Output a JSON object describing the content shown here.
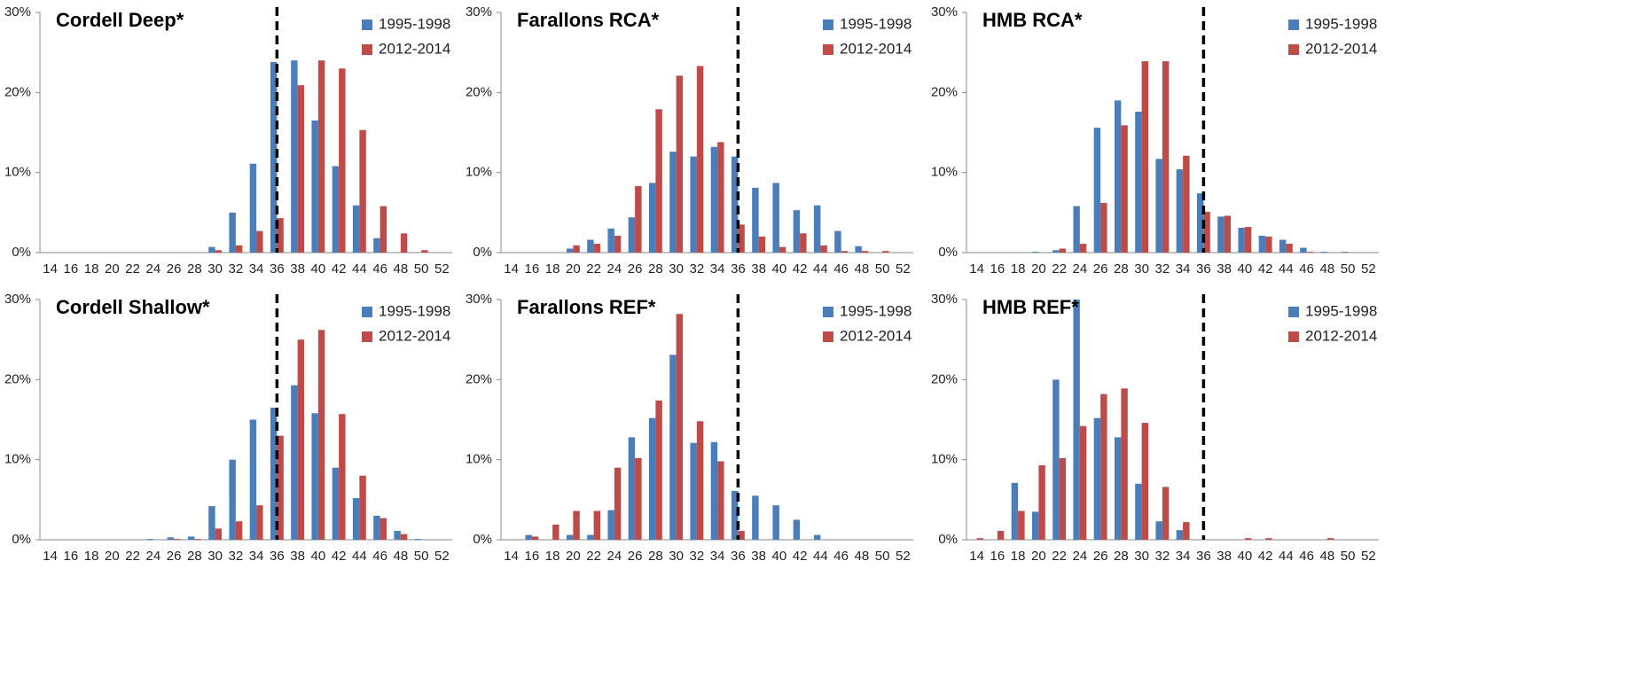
{
  "chart_data": [
    {
      "type": "bar",
      "title": "Cordell Deep*",
      "categories": [
        14,
        16,
        18,
        20,
        22,
        24,
        26,
        28,
        30,
        32,
        34,
        36,
        38,
        40,
        42,
        44,
        46,
        48,
        50,
        52
      ],
      "series": [
        {
          "name": "1995-1998",
          "color": "#4a7ebb",
          "values": [
            0,
            0,
            0,
            0,
            0,
            0,
            0,
            0,
            0.7,
            5,
            11.1,
            23.8,
            24,
            16.5,
            10.8,
            5.9,
            1.8,
            0,
            0,
            0
          ]
        },
        {
          "name": "2012-2014",
          "color": "#be4b48",
          "values": [
            0,
            0,
            0,
            0,
            0,
            0,
            0,
            0,
            0.3,
            0.9,
            2.7,
            4.3,
            20.9,
            24,
            23,
            15.3,
            5.8,
            2.4,
            0.3,
            0
          ]
        }
      ],
      "ylim": [
        0,
        30
      ],
      "yticks": [
        {
          "value": 0,
          "label": "0%"
        },
        {
          "value": 10,
          "label": "10%"
        },
        {
          "value": 20,
          "label": "20%"
        },
        {
          "value": 30,
          "label": "30%"
        }
      ],
      "threshold": 36,
      "grid": false
    },
    {
      "type": "bar",
      "title": "Farallons RCA*",
      "categories": [
        14,
        16,
        18,
        20,
        22,
        24,
        26,
        28,
        30,
        32,
        34,
        36,
        38,
        40,
        42,
        44,
        46,
        48,
        50,
        52
      ],
      "series": [
        {
          "name": "1995-1998",
          "color": "#4a7ebb",
          "values": [
            0,
            0,
            0,
            0.5,
            1.6,
            3,
            4.4,
            8.7,
            12.6,
            12,
            13.2,
            12,
            8.1,
            8.7,
            5.3,
            5.9,
            2.7,
            0.8,
            0,
            0
          ]
        },
        {
          "name": "2012-2014",
          "color": "#be4b48",
          "values": [
            0,
            0,
            0,
            0.9,
            1.1,
            2.1,
            8.3,
            17.9,
            22.1,
            23.3,
            13.8,
            3.5,
            2,
            0.7,
            2.4,
            0.9,
            0.2,
            0.2,
            0.2,
            0
          ]
        }
      ],
      "ylim": [
        0,
        30
      ],
      "yticks": [
        {
          "value": 0,
          "label": "0%"
        },
        {
          "value": 10,
          "label": "10%"
        },
        {
          "value": 20,
          "label": "20%"
        },
        {
          "value": 30,
          "label": "30%"
        }
      ],
      "threshold": 36,
      "grid": false
    },
    {
      "type": "bar",
      "title": "HMB RCA*",
      "categories": [
        14,
        16,
        18,
        20,
        22,
        24,
        26,
        28,
        30,
        32,
        34,
        36,
        38,
        40,
        42,
        44,
        46,
        48,
        50,
        52
      ],
      "series": [
        {
          "name": "1995-1998",
          "color": "#4a7ebb",
          "values": [
            0,
            0,
            0,
            0.1,
            0.3,
            5.8,
            15.6,
            19,
            17.6,
            11.7,
            10.4,
            7.4,
            4.5,
            3.1,
            2.1,
            1.6,
            0.6,
            0.1,
            0.1,
            0
          ]
        },
        {
          "name": "2012-2014",
          "color": "#be4b48",
          "values": [
            0,
            0,
            0,
            0,
            0.5,
            1.1,
            6.2,
            15.9,
            23.9,
            23.9,
            12.1,
            5.1,
            4.6,
            3.2,
            2,
            1.1,
            0.1,
            0,
            0,
            0
          ]
        }
      ],
      "ylim": [
        0,
        30
      ],
      "yticks": [
        {
          "value": 0,
          "label": "0%"
        },
        {
          "value": 10,
          "label": "10%"
        },
        {
          "value": 20,
          "label": "20%"
        },
        {
          "value": 30,
          "label": "30%"
        }
      ],
      "threshold": 36,
      "grid": false
    },
    {
      "type": "bar",
      "title": "Cordell Shallow*",
      "categories": [
        14,
        16,
        18,
        20,
        22,
        24,
        26,
        28,
        30,
        32,
        34,
        36,
        38,
        40,
        42,
        44,
        46,
        48,
        50,
        52
      ],
      "series": [
        {
          "name": "1995-1998",
          "color": "#4a7ebb",
          "values": [
            0,
            0,
            0,
            0,
            0,
            0.1,
            0.3,
            0.4,
            4.2,
            10,
            15,
            16.5,
            19.3,
            15.8,
            9,
            5.2,
            3,
            1.1,
            0.1,
            0
          ]
        },
        {
          "name": "2012-2014",
          "color": "#be4b48",
          "values": [
            0,
            0,
            0,
            0,
            0,
            0,
            0.1,
            0.1,
            1.4,
            2.3,
            4.3,
            13,
            25,
            26.2,
            15.7,
            8,
            2.7,
            0.7,
            0,
            0
          ]
        }
      ],
      "ylim": [
        0,
        30
      ],
      "yticks": [
        {
          "value": 0,
          "label": "0%"
        },
        {
          "value": 10,
          "label": "10%"
        },
        {
          "value": 20,
          "label": "20%"
        },
        {
          "value": 30,
          "label": "30%"
        }
      ],
      "threshold": 36,
      "grid": false
    },
    {
      "type": "bar",
      "title": "Farallons REF*",
      "categories": [
        14,
        16,
        18,
        20,
        22,
        24,
        26,
        28,
        30,
        32,
        34,
        36,
        38,
        40,
        42,
        44,
        46,
        48,
        50,
        52
      ],
      "series": [
        {
          "name": "1995-1998",
          "color": "#4a7ebb",
          "values": [
            0,
            0.6,
            0,
            0.6,
            0.6,
            3.7,
            12.8,
            15.2,
            23.1,
            12.1,
            12.2,
            6.1,
            5.5,
            4.3,
            2.5,
            0.6,
            0,
            0,
            0,
            0
          ]
        },
        {
          "name": "2012-2014",
          "color": "#be4b48",
          "values": [
            0,
            0.4,
            1.9,
            3.6,
            3.6,
            9,
            10.2,
            17.4,
            28.2,
            14.8,
            9.8,
            1.1,
            0,
            0,
            0,
            0,
            0,
            0,
            0,
            0
          ]
        }
      ],
      "ylim": [
        0,
        30
      ],
      "yticks": [
        {
          "value": 0,
          "label": "0%"
        },
        {
          "value": 10,
          "label": "10%"
        },
        {
          "value": 20,
          "label": "20%"
        },
        {
          "value": 30,
          "label": "30%"
        }
      ],
      "threshold": 36,
      "grid": false
    },
    {
      "type": "bar",
      "title": "HMB REF*",
      "categories": [
        14,
        16,
        18,
        20,
        22,
        24,
        26,
        28,
        30,
        32,
        34,
        36,
        38,
        40,
        42,
        44,
        46,
        48,
        50,
        52
      ],
      "series": [
        {
          "name": "1995-1998",
          "color": "#4a7ebb",
          "values": [
            0,
            0,
            7.1,
            3.5,
            20,
            30,
            15.2,
            12.8,
            7,
            2.3,
            1.2,
            0,
            0,
            0,
            0,
            0,
            0,
            0,
            0,
            0
          ]
        },
        {
          "name": "2012-2014",
          "color": "#be4b48",
          "values": [
            0.2,
            1.1,
            3.6,
            9.3,
            10.2,
            14.2,
            18.2,
            18.9,
            14.6,
            6.6,
            2.2,
            0,
            0,
            0.2,
            0.2,
            0,
            0,
            0.2,
            0,
            0
          ]
        }
      ],
      "ylim": [
        0,
        30
      ],
      "yticks": [
        {
          "value": 0,
          "label": "0%"
        },
        {
          "value": 10,
          "label": "10%"
        },
        {
          "value": 20,
          "label": "20%"
        },
        {
          "value": 30,
          "label": "30%"
        }
      ],
      "threshold": 36,
      "grid": false
    }
  ]
}
